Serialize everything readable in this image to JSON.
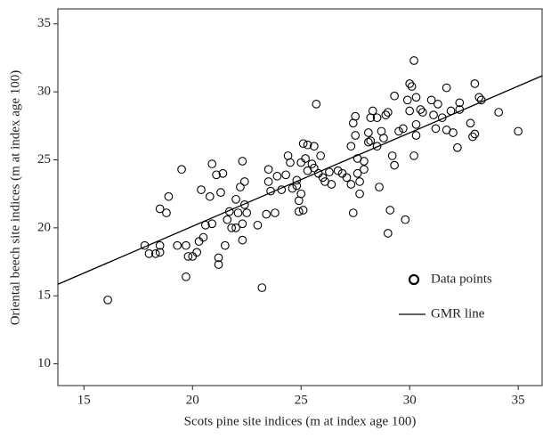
{
  "chart_data": {
    "type": "scatter",
    "xlabel": "Scots pine site indices (m at index age 100)",
    "ylabel": "Oriental beech site indices (m at index age 100)",
    "xlim": [
      13.8,
      36.1
    ],
    "ylim": [
      8.4,
      36.1
    ],
    "xticks": [
      15,
      20,
      25,
      30,
      35
    ],
    "yticks": [
      10,
      15,
      20,
      25,
      30,
      35
    ],
    "legend": "lower right",
    "series": [
      {
        "name": "Data points",
        "marker": "circle",
        "color": "#000000",
        "x": [
          16.1,
          17.8,
          18.0,
          18.3,
          18.5,
          18.5,
          18.5,
          18.8,
          18.9,
          19.3,
          19.5,
          19.7,
          19.7,
          19.8,
          20.0,
          20.2,
          20.3,
          20.5,
          20.4,
          20.6,
          20.8,
          20.9,
          20.9,
          21.1,
          21.2,
          21.2,
          21.3,
          21.4,
          21.5,
          21.6,
          21.7,
          21.8,
          22.0,
          22.0,
          22.1,
          22.2,
          22.3,
          22.3,
          22.3,
          22.4,
          22.5,
          22.4,
          23.0,
          23.2,
          23.4,
          23.5,
          23.5,
          23.6,
          23.8,
          23.9,
          24.1,
          24.3,
          24.4,
          24.5,
          24.6,
          24.8,
          24.8,
          24.9,
          24.9,
          25.0,
          25.0,
          25.1,
          25.1,
          25.2,
          25.3,
          25.3,
          25.5,
          25.6,
          25.6,
          25.7,
          25.8,
          25.9,
          26.0,
          26.1,
          26.3,
          26.4,
          26.7,
          26.9,
          27.1,
          27.3,
          27.4,
          27.3,
          27.4,
          27.5,
          27.5,
          27.6,
          27.6,
          27.7,
          27.7,
          27.9,
          27.9,
          28.1,
          28.1,
          28.2,
          28.2,
          28.3,
          28.5,
          28.5,
          28.6,
          28.7,
          28.8,
          28.9,
          29.0,
          29.0,
          29.1,
          29.2,
          29.3,
          29.3,
          29.5,
          29.7,
          29.8,
          29.9,
          30.0,
          30.0,
          30.1,
          30.2,
          30.3,
          30.2,
          30.3,
          30.3,
          30.5,
          30.6,
          31.0,
          31.1,
          31.2,
          31.3,
          31.5,
          31.7,
          31.7,
          31.9,
          32.0,
          32.2,
          32.3,
          32.3,
          32.8,
          32.9,
          33.0,
          33.0,
          33.2,
          33.3,
          34.1,
          35.0
        ],
        "values": [
          14.7,
          18.7,
          18.1,
          18.1,
          18.7,
          18.2,
          21.4,
          21.1,
          22.3,
          18.7,
          24.3,
          18.7,
          16.4,
          17.9,
          17.9,
          18.2,
          19.0,
          19.3,
          22.8,
          20.2,
          22.3,
          20.3,
          24.7,
          23.9,
          17.8,
          17.3,
          22.6,
          24.0,
          18.7,
          20.6,
          21.2,
          20.0,
          20.0,
          22.1,
          21.1,
          23.0,
          24.9,
          20.3,
          19.1,
          23.4,
          21.1,
          21.7,
          20.2,
          15.6,
          21.0,
          24.3,
          23.4,
          22.7,
          21.1,
          23.8,
          22.8,
          23.9,
          25.3,
          24.8,
          22.9,
          23.1,
          23.5,
          21.2,
          22.0,
          22.5,
          24.8,
          21.3,
          26.2,
          25.1,
          26.1,
          24.2,
          24.7,
          26.0,
          24.4,
          29.1,
          24.0,
          25.3,
          23.7,
          23.4,
          24.1,
          23.2,
          24.2,
          24.0,
          23.7,
          23.2,
          21.1,
          26.0,
          27.7,
          28.2,
          26.8,
          25.1,
          24.0,
          23.4,
          22.5,
          24.3,
          24.9,
          26.3,
          27.0,
          28.1,
          26.4,
          28.6,
          26.0,
          28.1,
          23.0,
          27.1,
          26.6,
          28.3,
          28.5,
          19.6,
          21.3,
          25.3,
          24.6,
          29.7,
          27.1,
          27.3,
          20.6,
          29.4,
          30.6,
          28.6,
          30.4,
          32.3,
          29.6,
          25.3,
          26.8,
          27.6,
          28.7,
          28.5,
          29.4,
          28.3,
          27.3,
          29.1,
          28.1,
          30.3,
          27.2,
          28.6,
          27.0,
          25.9,
          28.7,
          29.2,
          27.7,
          26.7,
          26.9,
          30.6,
          29.6,
          29.4,
          28.5,
          27.1
        ]
      },
      {
        "name": "GMR line",
        "marker": "line",
        "color": "#000000",
        "x": [
          13.8,
          36.1
        ],
        "values": [
          15.85,
          31.18
        ]
      }
    ]
  }
}
